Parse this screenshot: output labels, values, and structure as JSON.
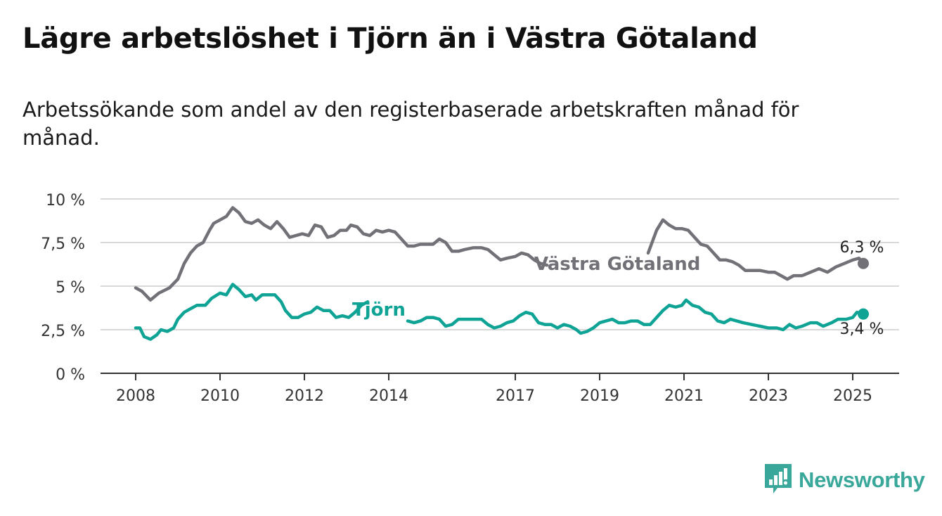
{
  "title": "Lägre arbetslöshet i Tjörn än i Västra Götaland",
  "subtitle": "Arbetssökande som andel av den registerbaserade arbetskraften månad för månad.",
  "brand": {
    "name": "Newsworthy",
    "logo_icon": "bar-chart-logo-icon"
  },
  "colors": {
    "vg": "#717177",
    "tjorn": "#0ea394",
    "grid": "#d9d9d9",
    "axis": "#333333"
  },
  "chart_data": {
    "type": "line",
    "title": "Lägre arbetslöshet i Tjörn än i Västra Götaland",
    "subtitle": "Arbetssökande som andel av den registerbaserade arbetskraften månad för månad.",
    "ylim": [
      0,
      10
    ],
    "xlim": [
      2007.6,
      2026.1
    ],
    "y_ticks": [
      0,
      2.5,
      5,
      7.5,
      10
    ],
    "y_tick_labels": [
      "0 %",
      "2,5 %",
      "5 %",
      "7,5 %",
      "10 %"
    ],
    "x_ticks": [
      2008,
      2010,
      2012,
      2014,
      2017,
      2019,
      2021,
      2023,
      2025
    ],
    "x_tick_labels": [
      "2008",
      "2010",
      "2012",
      "2014",
      "2017",
      "2019",
      "2021",
      "2023",
      "2025"
    ],
    "grid": true,
    "series": [
      {
        "name": "Västra Götaland",
        "color": "#717177",
        "label_text": "Västra Götaland",
        "end_label": "6,3 %",
        "points": [
          [
            2008.0,
            4.9
          ],
          [
            2008.15,
            4.7
          ],
          [
            2008.35,
            4.2
          ],
          [
            2008.55,
            4.6
          ],
          [
            2008.8,
            4.9
          ],
          [
            2009.0,
            5.4
          ],
          [
            2009.15,
            6.3
          ],
          [
            2009.3,
            6.9
          ],
          [
            2009.45,
            7.3
          ],
          [
            2009.6,
            7.5
          ],
          [
            2009.75,
            8.2
          ],
          [
            2009.85,
            8.6
          ],
          [
            2010.0,
            8.8
          ],
          [
            2010.15,
            9.0
          ],
          [
            2010.3,
            9.5
          ],
          [
            2010.45,
            9.2
          ],
          [
            2010.6,
            8.7
          ],
          [
            2010.75,
            8.6
          ],
          [
            2010.9,
            8.8
          ],
          [
            2011.05,
            8.5
          ],
          [
            2011.2,
            8.3
          ],
          [
            2011.35,
            8.7
          ],
          [
            2011.5,
            8.3
          ],
          [
            2011.65,
            7.8
          ],
          [
            2011.8,
            7.9
          ],
          [
            2011.95,
            8.0
          ],
          [
            2012.1,
            7.9
          ],
          [
            2012.25,
            8.5
          ],
          [
            2012.4,
            8.4
          ],
          [
            2012.55,
            7.8
          ],
          [
            2012.7,
            7.9
          ],
          [
            2012.85,
            8.2
          ],
          [
            2013.0,
            8.2
          ],
          [
            2013.1,
            8.5
          ],
          [
            2013.25,
            8.4
          ],
          [
            2013.4,
            8.0
          ],
          [
            2013.55,
            7.9
          ],
          [
            2013.7,
            8.2
          ],
          [
            2013.85,
            8.1
          ],
          [
            2014.0,
            8.2
          ],
          [
            2014.15,
            8.1
          ],
          [
            2014.3,
            7.7
          ],
          [
            2014.45,
            7.3
          ],
          [
            2014.6,
            7.3
          ],
          [
            2014.75,
            7.4
          ],
          [
            2014.9,
            7.4
          ],
          [
            2015.05,
            7.4
          ],
          [
            2015.2,
            7.7
          ],
          [
            2015.35,
            7.5
          ],
          [
            2015.5,
            7.0
          ],
          [
            2015.65,
            7.0
          ],
          [
            2015.8,
            7.1
          ],
          [
            2016.0,
            7.2
          ],
          [
            2016.2,
            7.2
          ],
          [
            2016.35,
            7.1
          ],
          [
            2016.5,
            6.8
          ],
          [
            2016.65,
            6.5
          ],
          [
            2016.8,
            6.6
          ],
          [
            2017.0,
            6.7
          ],
          [
            2017.15,
            6.9
          ],
          [
            2017.3,
            6.8
          ],
          [
            2017.45,
            6.5
          ],
          [
            2017.6,
            6.3
          ],
          [
            2017.75,
            6.2
          ],
          [
            2020.15,
            6.9
          ],
          [
            2020.35,
            8.2
          ],
          [
            2020.5,
            8.8
          ],
          [
            2020.65,
            8.5
          ],
          [
            2020.8,
            8.3
          ],
          [
            2020.95,
            8.3
          ],
          [
            2021.1,
            8.2
          ],
          [
            2021.25,
            7.8
          ],
          [
            2021.4,
            7.4
          ],
          [
            2021.55,
            7.3
          ],
          [
            2021.7,
            6.9
          ],
          [
            2021.85,
            6.5
          ],
          [
            2022.0,
            6.5
          ],
          [
            2022.15,
            6.4
          ],
          [
            2022.3,
            6.2
          ],
          [
            2022.45,
            5.9
          ],
          [
            2022.6,
            5.9
          ],
          [
            2022.8,
            5.9
          ],
          [
            2023.0,
            5.8
          ],
          [
            2023.15,
            5.8
          ],
          [
            2023.3,
            5.6
          ],
          [
            2023.45,
            5.4
          ],
          [
            2023.6,
            5.6
          ],
          [
            2023.8,
            5.6
          ],
          [
            2024.0,
            5.8
          ],
          [
            2024.2,
            6.0
          ],
          [
            2024.4,
            5.8
          ],
          [
            2024.6,
            6.1
          ],
          [
            2024.8,
            6.3
          ],
          [
            2025.0,
            6.5
          ],
          [
            2025.15,
            6.6
          ],
          [
            2025.25,
            6.3
          ]
        ]
      },
      {
        "name": "Tjörn",
        "color": "#0ea394",
        "label_text": "Tjörn",
        "end_label": "3,4 %",
        "points": [
          [
            2008.0,
            2.6
          ],
          [
            2008.1,
            2.6
          ],
          [
            2008.2,
            2.1
          ],
          [
            2008.35,
            1.95
          ],
          [
            2008.5,
            2.2
          ],
          [
            2008.6,
            2.5
          ],
          [
            2008.75,
            2.4
          ],
          [
            2008.9,
            2.6
          ],
          [
            2009.0,
            3.1
          ],
          [
            2009.15,
            3.5
          ],
          [
            2009.3,
            3.7
          ],
          [
            2009.45,
            3.9
          ],
          [
            2009.65,
            3.9
          ],
          [
            2009.8,
            4.3
          ],
          [
            2010.0,
            4.6
          ],
          [
            2010.15,
            4.5
          ],
          [
            2010.3,
            5.1
          ],
          [
            2010.45,
            4.8
          ],
          [
            2010.6,
            4.4
          ],
          [
            2010.75,
            4.5
          ],
          [
            2010.85,
            4.2
          ],
          [
            2011.0,
            4.5
          ],
          [
            2011.15,
            4.5
          ],
          [
            2011.3,
            4.5
          ],
          [
            2011.45,
            4.1
          ],
          [
            2011.55,
            3.6
          ],
          [
            2011.7,
            3.2
          ],
          [
            2011.85,
            3.2
          ],
          [
            2012.0,
            3.4
          ],
          [
            2012.15,
            3.5
          ],
          [
            2012.3,
            3.8
          ],
          [
            2012.45,
            3.6
          ],
          [
            2012.6,
            3.6
          ],
          [
            2012.75,
            3.2
          ],
          [
            2012.9,
            3.3
          ],
          [
            2013.05,
            3.2
          ],
          [
            2013.2,
            3.5
          ],
          [
            2013.35,
            3.9
          ],
          [
            2013.5,
            4.1
          ],
          [
            2014.45,
            3.0
          ],
          [
            2014.6,
            2.9
          ],
          [
            2014.75,
            3.0
          ],
          [
            2014.9,
            3.2
          ],
          [
            2015.05,
            3.2
          ],
          [
            2015.2,
            3.1
          ],
          [
            2015.35,
            2.7
          ],
          [
            2015.5,
            2.8
          ],
          [
            2015.65,
            3.1
          ],
          [
            2015.8,
            3.1
          ],
          [
            2016.0,
            3.1
          ],
          [
            2016.2,
            3.1
          ],
          [
            2016.35,
            2.8
          ],
          [
            2016.5,
            2.6
          ],
          [
            2016.65,
            2.7
          ],
          [
            2016.8,
            2.9
          ],
          [
            2016.95,
            3.0
          ],
          [
            2017.1,
            3.3
          ],
          [
            2017.25,
            3.5
          ],
          [
            2017.4,
            3.4
          ],
          [
            2017.55,
            2.9
          ],
          [
            2017.7,
            2.8
          ],
          [
            2017.85,
            2.8
          ],
          [
            2018.0,
            2.6
          ],
          [
            2018.15,
            2.8
          ],
          [
            2018.3,
            2.7
          ],
          [
            2018.45,
            2.5
          ],
          [
            2018.55,
            2.3
          ],
          [
            2018.7,
            2.4
          ],
          [
            2018.85,
            2.6
          ],
          [
            2019.0,
            2.9
          ],
          [
            2019.15,
            3.0
          ],
          [
            2019.3,
            3.1
          ],
          [
            2019.45,
            2.9
          ],
          [
            2019.6,
            2.9
          ],
          [
            2019.75,
            3.0
          ],
          [
            2019.9,
            3.0
          ],
          [
            2020.05,
            2.8
          ],
          [
            2020.2,
            2.8
          ],
          [
            2020.35,
            3.2
          ],
          [
            2020.5,
            3.6
          ],
          [
            2020.65,
            3.9
          ],
          [
            2020.8,
            3.8
          ],
          [
            2020.95,
            3.9
          ],
          [
            2021.05,
            4.2
          ],
          [
            2021.2,
            3.9
          ],
          [
            2021.35,
            3.8
          ],
          [
            2021.5,
            3.5
          ],
          [
            2021.65,
            3.4
          ],
          [
            2021.8,
            3.0
          ],
          [
            2021.95,
            2.9
          ],
          [
            2022.1,
            3.1
          ],
          [
            2022.25,
            3.0
          ],
          [
            2022.4,
            2.9
          ],
          [
            2022.6,
            2.8
          ],
          [
            2022.8,
            2.7
          ],
          [
            2023.0,
            2.6
          ],
          [
            2023.2,
            2.6
          ],
          [
            2023.35,
            2.5
          ],
          [
            2023.5,
            2.8
          ],
          [
            2023.65,
            2.6
          ],
          [
            2023.8,
            2.7
          ],
          [
            2024.0,
            2.9
          ],
          [
            2024.15,
            2.9
          ],
          [
            2024.3,
            2.7
          ],
          [
            2024.5,
            2.9
          ],
          [
            2024.65,
            3.1
          ],
          [
            2024.85,
            3.1
          ],
          [
            2025.0,
            3.2
          ],
          [
            2025.1,
            3.5
          ],
          [
            2025.25,
            3.4
          ]
        ]
      }
    ]
  }
}
